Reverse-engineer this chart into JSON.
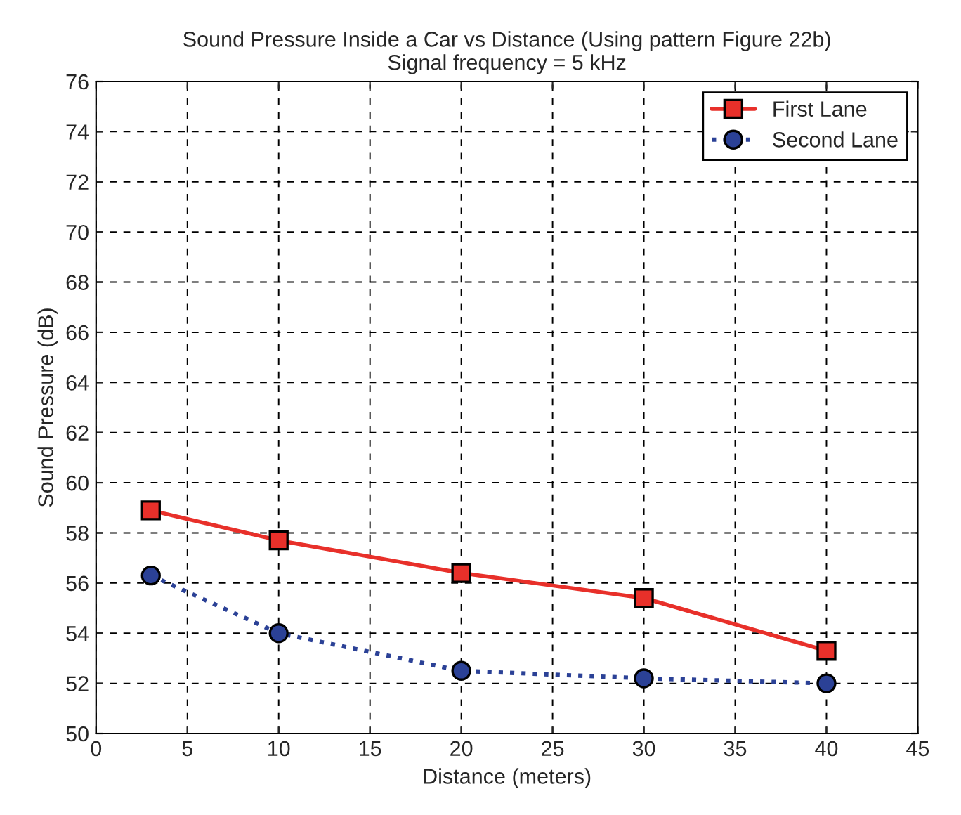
{
  "chart_data": {
    "type": "line",
    "title": "Sound Pressure Inside a Car vs Distance (Using pattern Figure 22b)",
    "subtitle": "Signal frequency = 5 kHz",
    "xlabel": "Distance (meters)",
    "ylabel": "Sound Pressure (dB)",
    "x": [
      3,
      10,
      20,
      30,
      40
    ],
    "series": [
      {
        "name": "First Lane",
        "color": "#e8302a",
        "values": [
          58.9,
          57.7,
          56.4,
          55.4,
          53.3
        ],
        "marker": "square",
        "line_style": "solid"
      },
      {
        "name": "Second Lane",
        "color": "#2b4196",
        "values": [
          56.3,
          54.0,
          52.5,
          52.2,
          52.0
        ],
        "marker": "circle",
        "line_style": "dotted"
      }
    ],
    "xlim": [
      0,
      45
    ],
    "xticks": [
      0,
      5,
      10,
      15,
      20,
      25,
      30,
      35,
      40,
      45
    ],
    "ylim": [
      50,
      76
    ],
    "yticks": [
      50,
      52,
      54,
      56,
      58,
      60,
      62,
      64,
      66,
      68,
      70,
      72,
      74,
      76
    ],
    "grid": true,
    "legend": "top right"
  }
}
